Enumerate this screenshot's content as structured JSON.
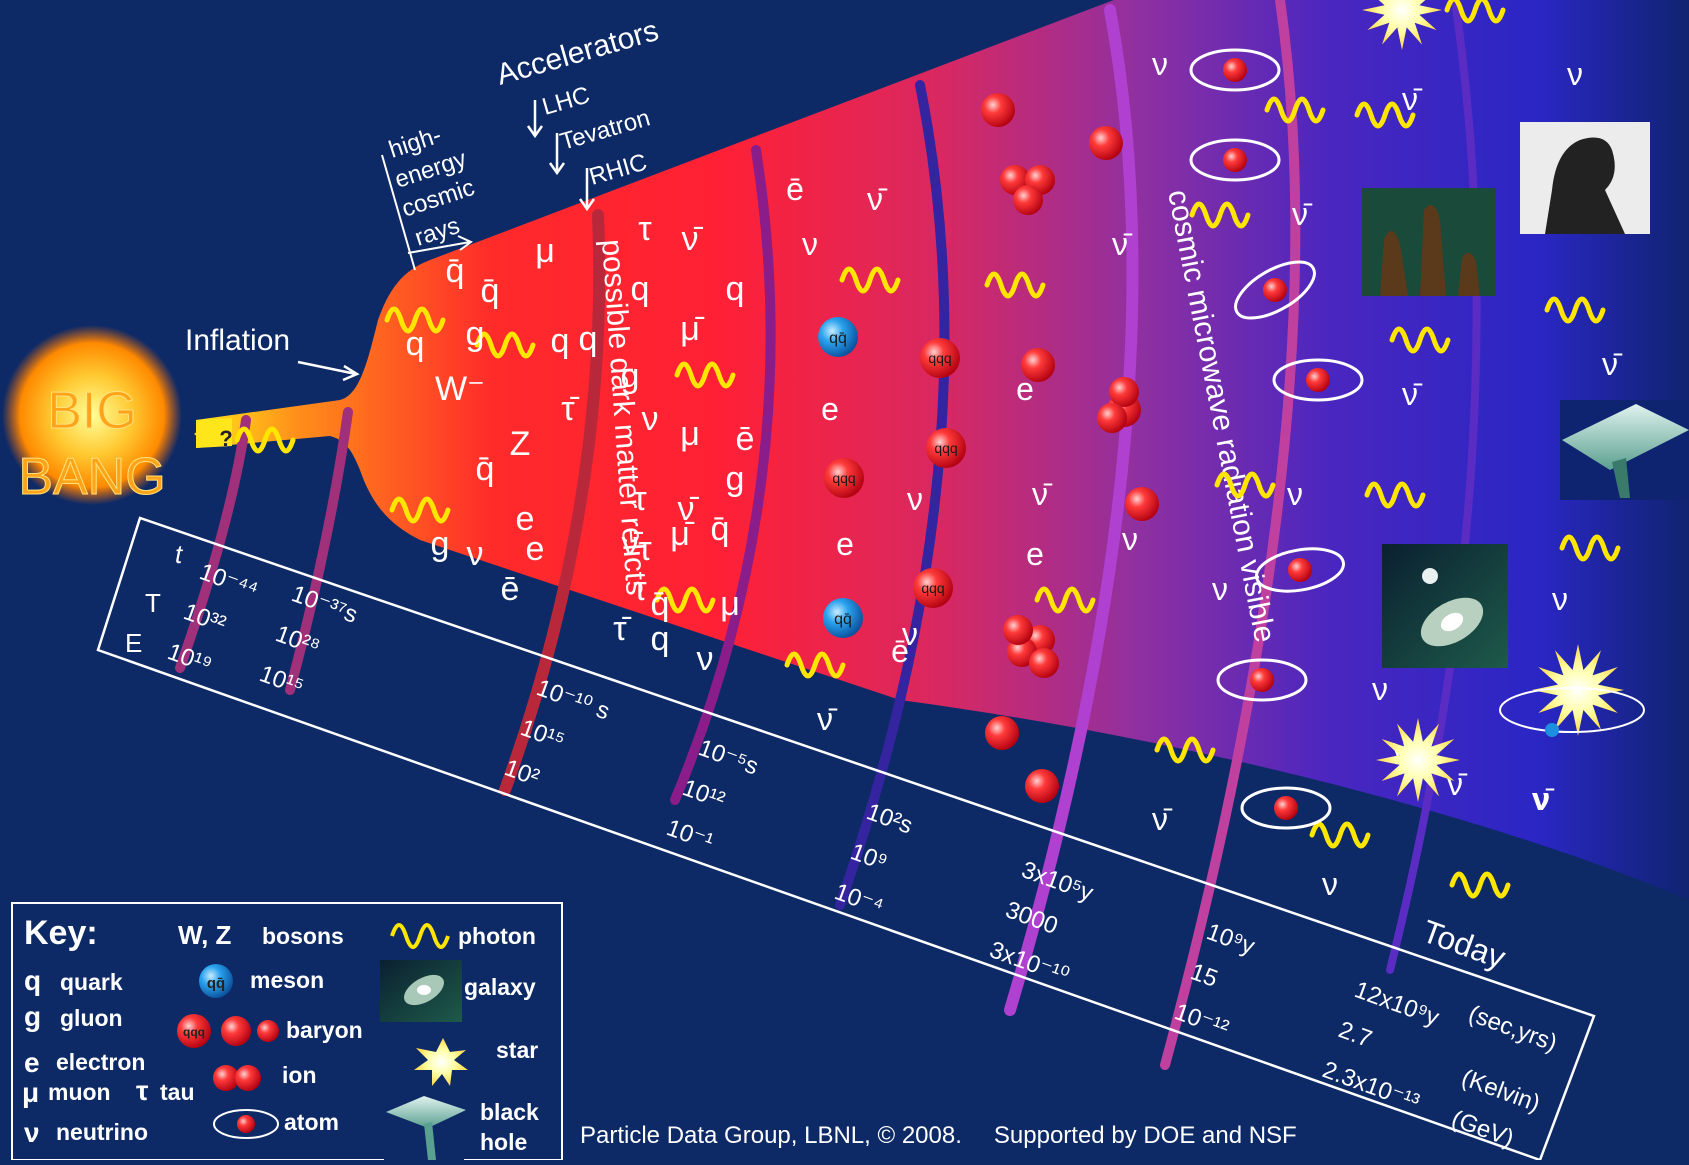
{
  "big_bang": {
    "line1": "BIG",
    "line2": "BANG",
    "question": "?"
  },
  "labels": {
    "inflation": "Inflation",
    "accelerators": "Accelerators",
    "lhc": "LHC",
    "tevatron": "Tevatron",
    "rhic": "RHIC",
    "cosmic_rays": [
      "high-",
      "energy",
      "cosmic",
      "rays"
    ],
    "dark_matter": "possible dark matter relicts",
    "cmb": "cosmic microwave radiation visible",
    "today": "Today"
  },
  "axis": {
    "row_labels": [
      "t",
      "T",
      "E"
    ],
    "units": [
      "(sec,yrs)",
      "(Kelvin)",
      "(GeV)"
    ],
    "ticks": [
      {
        "t": "10⁻⁴⁴",
        "T": "10³²",
        "E": "10¹⁹"
      },
      {
        "t": "10⁻³⁷s",
        "T": "10²⁸",
        "E": "10¹⁵"
      },
      {
        "t": "10⁻¹⁰ s",
        "T": "10¹⁵",
        "E": "10²"
      },
      {
        "t": "10⁻⁵s",
        "T": "10¹²",
        "E": "10⁻¹"
      },
      {
        "t": "10²s",
        "T": "10⁹",
        "E": "10⁻⁴"
      },
      {
        "t": "3x10⁵y",
        "T": "3000",
        "E": "3x10⁻¹⁰"
      },
      {
        "t": "10⁹y",
        "T": "15",
        "E": "10⁻¹²"
      },
      {
        "t": "12x10⁹y",
        "T": "2.7",
        "E": "2.3x10⁻¹³"
      }
    ]
  },
  "key": {
    "title": "Key:",
    "left": [
      {
        "sym": "q",
        "label": "quark"
      },
      {
        "sym": "g",
        "label": "gluon"
      },
      {
        "sym": "e",
        "label": "electron"
      },
      {
        "sym": "μ",
        "label": "muon"
      },
      {
        "sym": "τ",
        "label": "tau"
      },
      {
        "sym": "ν",
        "label": "neutrino"
      }
    ],
    "bosons_sym": "W, Z",
    "bosons": "bosons",
    "meson_sym": "qq̄",
    "meson": "meson",
    "baryon_sym": "qqq",
    "baryon": "baryon",
    "ion": "ion",
    "atom": "atom",
    "photon": "photon",
    "galaxy": "galaxy",
    "star": "star",
    "black_hole": [
      "black",
      "hole"
    ]
  },
  "particles_quark_era": [
    "q̄",
    "μ",
    "τ",
    "ν̄",
    "q̄",
    "g",
    "q",
    "q",
    "q",
    "μ̄",
    "q",
    "W⁻",
    "Z",
    "τ̄",
    "ν",
    "μ",
    "ē",
    "τ",
    "q̄",
    "g",
    "τ",
    "e",
    "ν̄",
    "μ̄",
    "q̄",
    "e",
    "ν̄",
    "g",
    "ν",
    "ē",
    "τ",
    "q̄",
    "μ",
    "τ̄",
    "q",
    "ν",
    "g",
    "q"
  ],
  "particles_lepton_era": [
    "ē",
    "ν̄",
    "ν",
    "e",
    "ν",
    "e",
    "ē",
    "ν̄",
    "ν"
  ],
  "particles_later": [
    "ν",
    "ν̄",
    "ν̄",
    "ν̄",
    "e",
    "ν̄",
    "e",
    "ν",
    "ν",
    "ν",
    "ν̄",
    "ν",
    "ν",
    "ν̄",
    "ν",
    "ν̄",
    "ν̄",
    "ν",
    "ν",
    "ν̄",
    "ν"
  ],
  "credit": {
    "pdg": "Particle Data Group, LBNL, © 2008.",
    "support": "Supported by DOE and NSF"
  },
  "colors": {
    "background": "#0d2a66",
    "photon": "#ffe600",
    "band": "#a0307a",
    "meson": "#1d8fe0",
    "baryon": "#e81c24"
  }
}
